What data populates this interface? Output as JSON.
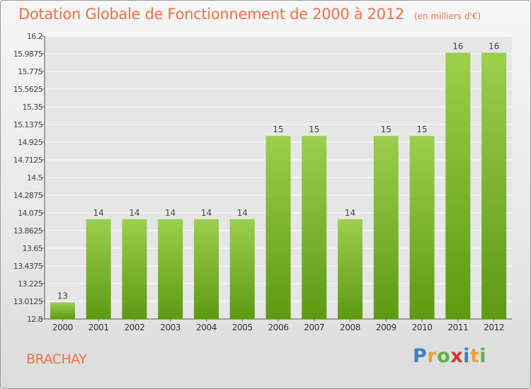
{
  "chart_data": {
    "type": "bar",
    "title": "Dotation Globale de Fonctionnement de 2000 à 2012",
    "subtitle": "(en milliers d'€)",
    "categories": [
      "2000",
      "2001",
      "2002",
      "2003",
      "2004",
      "2005",
      "2006",
      "2007",
      "2008",
      "2009",
      "2010",
      "2011",
      "2012"
    ],
    "values": [
      13.0,
      14.0,
      14.0,
      14.0,
      14.0,
      14.0,
      15.0,
      15.0,
      14.0,
      15.0,
      15.0,
      16.0,
      16.0
    ],
    "value_labels": [
      "13",
      "14",
      "14",
      "14",
      "14",
      "14",
      "15",
      "15",
      "14",
      "15",
      "15",
      "16",
      "16"
    ],
    "y_ticks": [
      "12.8",
      "13.0125",
      "13.225",
      "13.4375",
      "13.65",
      "13.8625",
      "14.075",
      "14.2875",
      "14.5",
      "14.7125",
      "14.925",
      "15.1375",
      "15.35",
      "15.5625",
      "15.775",
      "15.9875",
      "16.2"
    ],
    "ylim": [
      12.8,
      16.2
    ],
    "xlabel": "",
    "ylabel": "",
    "grid": true,
    "colors": {
      "bar_top": "#9ccf4d",
      "bar_bottom": "#5d9a12",
      "grid": "#ffffff",
      "title": "#e8734a"
    }
  },
  "commune": "BRACHAY",
  "logo": {
    "letters": [
      "P",
      "r",
      "o",
      "x",
      "i",
      "t",
      "i"
    ]
  }
}
